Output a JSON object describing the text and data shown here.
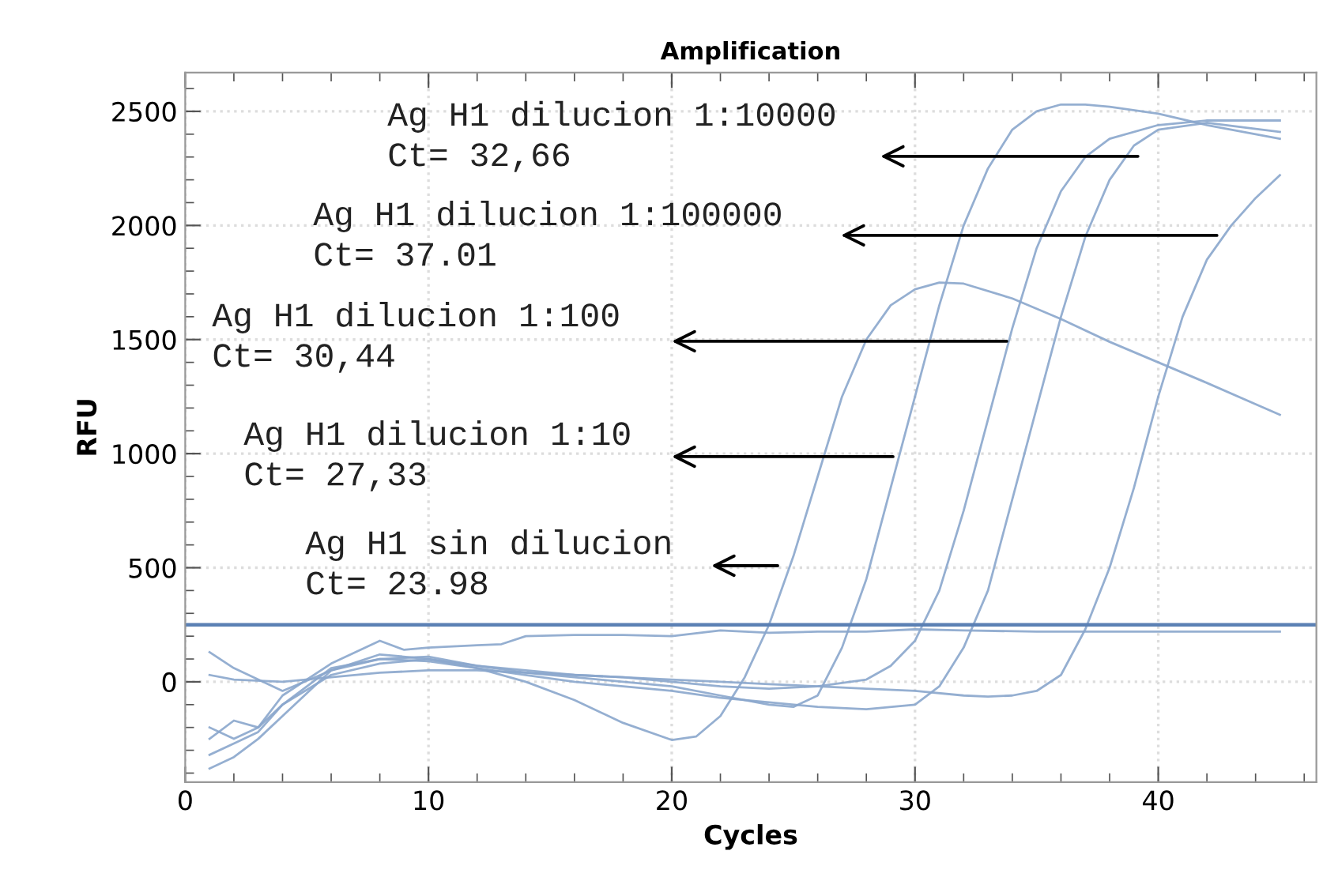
{
  "chart_data": {
    "type": "line",
    "title": "Amplification",
    "xlabel": "Cycles",
    "ylabel": "RFU",
    "xlim": [
      0,
      46.5
    ],
    "ylim": [
      -440,
      2670
    ],
    "xticks": [
      0,
      10,
      20,
      30,
      40
    ],
    "yticks": [
      0,
      500,
      1000,
      1500,
      2000,
      2500
    ],
    "grid": true,
    "series": [
      {
        "color": "#8aa6cc",
        "x": [
          1,
          2,
          4,
          6,
          8,
          10,
          12,
          14,
          16,
          18,
          20,
          21,
          22,
          23,
          24,
          25,
          26,
          27,
          28,
          29,
          30,
          31,
          32,
          34,
          36,
          38,
          40,
          42,
          45
        ],
        "values": [
          130,
          60,
          -40,
          50,
          100,
          90,
          60,
          0,
          -80,
          -180,
          -255,
          -240,
          -150,
          20,
          250,
          550,
          900,
          1250,
          1500,
          1650,
          1720,
          1750,
          1745,
          1680,
          1590,
          1490,
          1400,
          1310,
          1170
        ]
      },
      {
        "color": "#8aa6cc",
        "x": [
          1,
          2,
          3,
          4,
          6,
          8,
          10,
          12,
          14,
          16,
          18,
          20,
          22,
          24,
          25,
          26,
          27,
          28,
          29,
          30,
          31,
          32,
          33,
          34,
          35,
          36,
          37,
          38,
          40,
          42,
          45
        ],
        "values": [
          -200,
          -250,
          -200,
          -100,
          30,
          80,
          100,
          70,
          40,
          20,
          0,
          -20,
          -60,
          -100,
          -110,
          -60,
          150,
          450,
          850,
          1250,
          1650,
          2000,
          2250,
          2420,
          2500,
          2530,
          2530,
          2520,
          2490,
          2440,
          2380
        ]
      },
      {
        "color": "#8aa6cc",
        "x": [
          1,
          2,
          3,
          4,
          6,
          8,
          10,
          12,
          14,
          16,
          18,
          20,
          22,
          24,
          26,
          28,
          29,
          30,
          31,
          32,
          33,
          34,
          35,
          36,
          37,
          38,
          40,
          42,
          45
        ],
        "values": [
          -320,
          -270,
          -220,
          -100,
          60,
          100,
          110,
          70,
          50,
          30,
          20,
          0,
          -20,
          -30,
          -20,
          10,
          70,
          180,
          400,
          750,
          1150,
          1550,
          1900,
          2150,
          2300,
          2380,
          2440,
          2460,
          2460
        ]
      },
      {
        "color": "#8aa6cc",
        "x": [
          1,
          2,
          3,
          4,
          6,
          8,
          10,
          12,
          14,
          16,
          18,
          20,
          22,
          24,
          26,
          28,
          30,
          31,
          32,
          33,
          34,
          35,
          36,
          37,
          38,
          39,
          40,
          42,
          45
        ],
        "values": [
          -380,
          -330,
          -250,
          -150,
          50,
          120,
          100,
          60,
          30,
          0,
          -20,
          -40,
          -70,
          -90,
          -110,
          -120,
          -100,
          -20,
          150,
          400,
          800,
          1200,
          1600,
          1950,
          2200,
          2350,
          2420,
          2450,
          2410
        ]
      },
      {
        "color": "#8aa6cc",
        "x": [
          1,
          2,
          4,
          6,
          8,
          10,
          12,
          14,
          16,
          18,
          20,
          22,
          24,
          26,
          28,
          30,
          32,
          33,
          34,
          35,
          36,
          37,
          38,
          39,
          40,
          41,
          42,
          43,
          44,
          45
        ],
        "values": [
          30,
          10,
          0,
          20,
          40,
          50,
          50,
          40,
          30,
          20,
          10,
          0,
          -10,
          -20,
          -30,
          -40,
          -60,
          -65,
          -60,
          -40,
          30,
          230,
          500,
          850,
          1250,
          1600,
          1850,
          2000,
          2120,
          2220
        ]
      },
      {
        "color": "#8aa6cc",
        "x": [
          1,
          2,
          3,
          4,
          6,
          8,
          9,
          10,
          12,
          13,
          14,
          16,
          18,
          20,
          22,
          24,
          26,
          28,
          30,
          32,
          35,
          40,
          45
        ],
        "values": [
          -250,
          -170,
          -200,
          -60,
          80,
          180,
          140,
          150,
          160,
          165,
          200,
          205,
          205,
          200,
          225,
          215,
          220,
          220,
          230,
          225,
          220,
          220,
          220
        ]
      }
    ],
    "ref_lines": [
      {
        "axis": "y",
        "value": 250,
        "color": "#5b80b4"
      }
    ],
    "annotations": [
      "Ag H1 dilucion 1:10000\nCt= 32,66",
      "Ag H1 dilucion 1:100000\nCt= 37.01",
      "Ag H1 dilucion 1:100\nCt= 30,44",
      "Ag H1 dilucion 1:10\nCt= 27,33",
      "Ag H1 sin dilucion\nCt= 23.98"
    ]
  }
}
